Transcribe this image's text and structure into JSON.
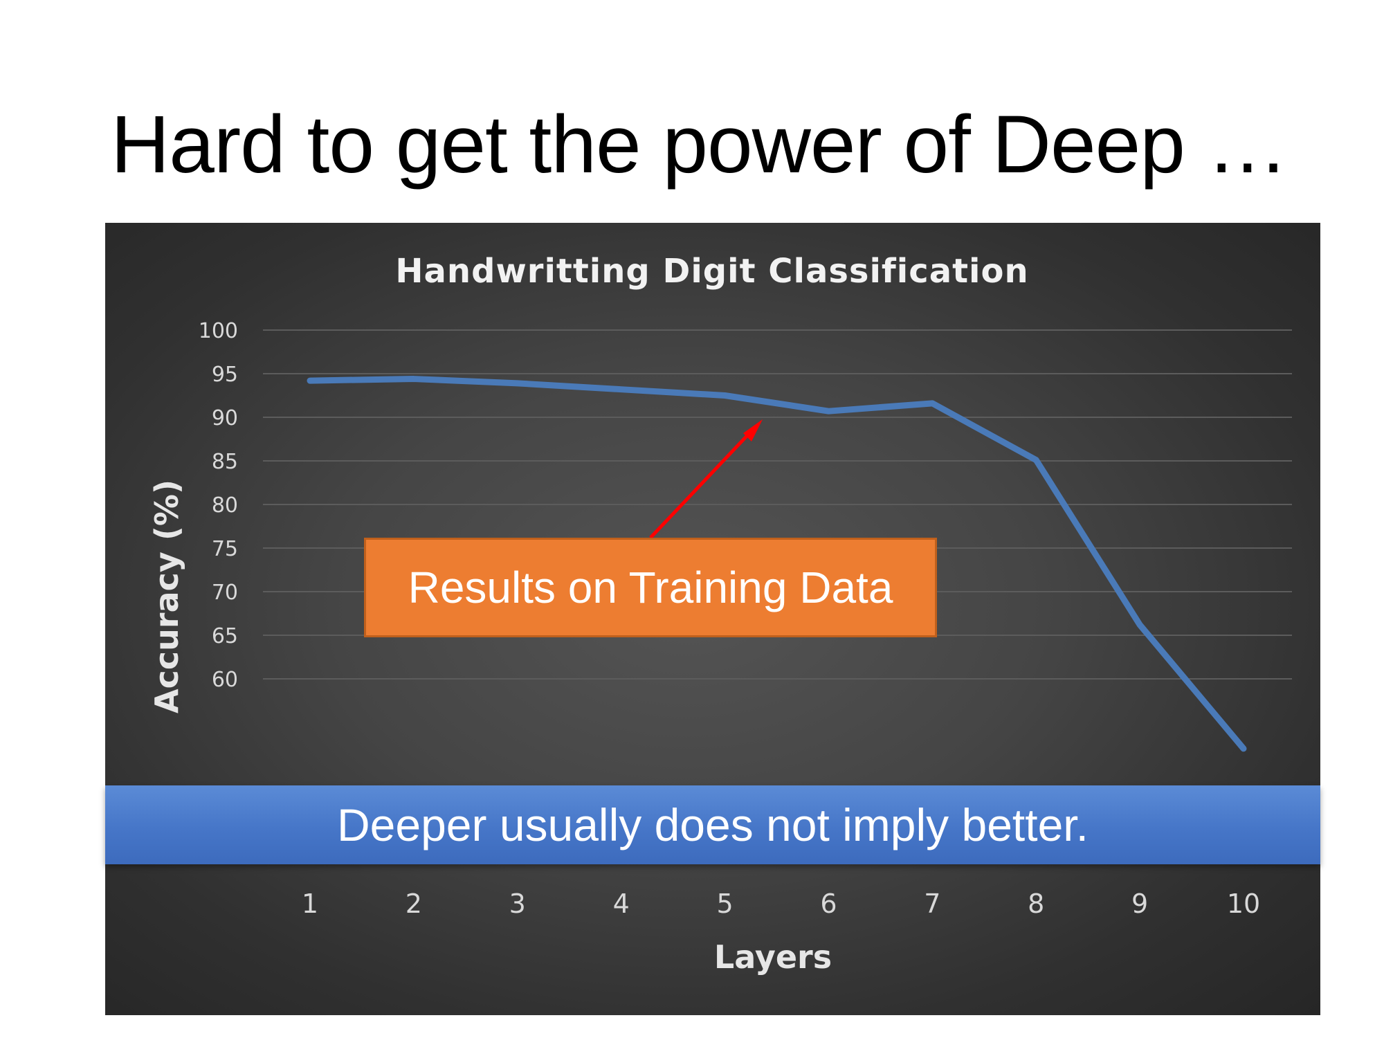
{
  "slide": {
    "title": "Hard to get the power of Deep …",
    "annotation": "Results on Training Data",
    "banner": "Deeper usually does not imply better."
  },
  "chart_data": {
    "type": "line",
    "title": "Handwritting  Digit  Classification",
    "xlabel": "Layers",
    "ylabel": "Accuracy (%)",
    "categories": [
      "1",
      "2",
      "3",
      "4",
      "5",
      "6",
      "7",
      "8",
      "9",
      "10"
    ],
    "series": [
      {
        "values": [
          94.2,
          94.4,
          93.9,
          93.2,
          92.5,
          90.7,
          91.6,
          85.1,
          66.2,
          52.0
        ]
      }
    ],
    "ylim": [
      50,
      100
    ],
    "yticks": [
      100,
      95,
      90,
      85,
      80,
      75,
      70,
      65,
      60
    ],
    "grid": true,
    "legend": "none",
    "colors": {
      "background": "#3a3a3a",
      "line": "#4a7ab8",
      "annotation_box": "#ed7d31",
      "arrow": "#ff0000",
      "banner": "#4676c8"
    }
  }
}
